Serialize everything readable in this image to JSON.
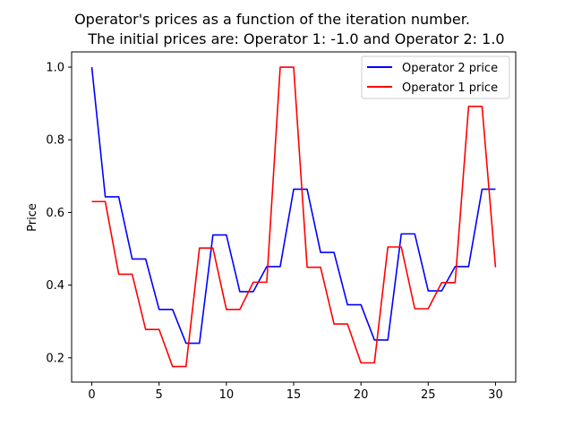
{
  "chart_data": {
    "type": "line",
    "title": "Operator's prices as a function of the iteration number.",
    "subtitle": "The initial prices are: Operator 1: -1.0 and Operator 2: 1.0",
    "xlabel": "",
    "ylabel": "Price",
    "xlim": [
      -1.5,
      31.5
    ],
    "ylim": [
      0.133,
      1.042
    ],
    "xticks": [
      0,
      5,
      10,
      15,
      20,
      25,
      30
    ],
    "yticks": [
      0.2,
      0.4,
      0.6,
      0.8,
      1.0
    ],
    "xtick_labels": [
      "0",
      "5",
      "10",
      "15",
      "20",
      "25",
      "30"
    ],
    "ytick_labels": [
      "0.2",
      "0.4",
      "0.6",
      "0.8",
      "1.0"
    ],
    "grid": false,
    "legend_position": "top-right",
    "series": [
      {
        "name": "Operator 2 price",
        "color": "#0000ff",
        "x": [
          0,
          1,
          2,
          3,
          4,
          5,
          6,
          7,
          8,
          9,
          10,
          11,
          12,
          13,
          14,
          15,
          16,
          17,
          18,
          19,
          20,
          21,
          22,
          23,
          24,
          25,
          26,
          27,
          28,
          29,
          30
        ],
        "values": [
          1.0,
          0.643,
          0.643,
          0.472,
          0.472,
          0.333,
          0.333,
          0.24,
          0.24,
          0.538,
          0.538,
          0.382,
          0.382,
          0.451,
          0.451,
          0.664,
          0.664,
          0.49,
          0.49,
          0.346,
          0.346,
          0.249,
          0.249,
          0.541,
          0.541,
          0.384,
          0.384,
          0.451,
          0.451,
          0.664,
          0.664
        ]
      },
      {
        "name": "Operator 1 price",
        "color": "#ff0000",
        "x": [
          0,
          1,
          2,
          3,
          4,
          5,
          6,
          7,
          8,
          9,
          10,
          11,
          12,
          13,
          14,
          15,
          16,
          17,
          18,
          19,
          20,
          21,
          22,
          23,
          24,
          25,
          26,
          27,
          28,
          29,
          30
        ],
        "values": [
          0.63,
          0.63,
          0.43,
          0.43,
          0.278,
          0.278,
          0.176,
          0.176,
          0.502,
          0.502,
          0.333,
          0.333,
          0.408,
          0.408,
          1.0,
          1.0,
          0.449,
          0.449,
          0.293,
          0.293,
          0.186,
          0.186,
          0.505,
          0.505,
          0.335,
          0.335,
          0.407,
          0.407,
          0.892,
          0.892,
          0.449
        ]
      }
    ]
  }
}
